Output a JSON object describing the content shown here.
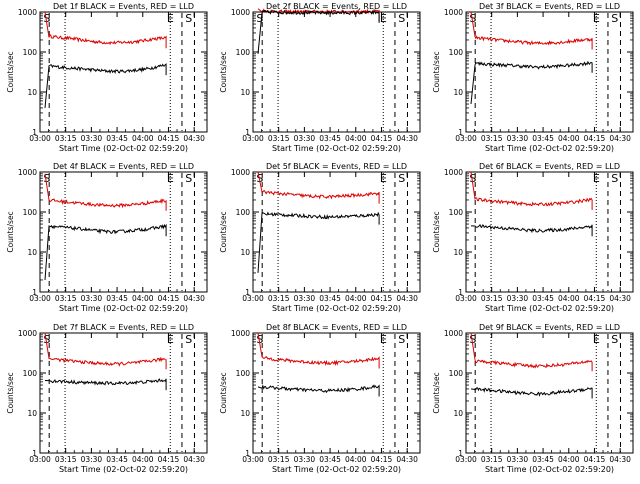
{
  "chart_data": [
    {
      "type": "line",
      "title": "Det 1f BLACK = Events, RED = LLD",
      "ylabel": "Counts/sec",
      "xlabel": "Start Time (02-Oct-02 02:59:20)",
      "x_ticks": [
        "03:00",
        "03:15",
        "03:30",
        "03:45",
        "04:00",
        "04:15",
        "04:30"
      ],
      "y_ticks": [
        "1",
        "10",
        "100",
        "1000"
      ],
      "ylim": [
        1,
        1000
      ],
      "yscale": "log",
      "markers": [
        "S",
        "E",
        "S"
      ],
      "series": [
        {
          "name": "LLD",
          "color": "#dd0000",
          "start_value": 1000,
          "values": [
            250,
            230,
            220,
            200,
            185,
            175,
            170,
            175,
            180,
            195,
            215,
            225
          ]
        },
        {
          "name": "Events",
          "color": "#000000",
          "start_value": 4,
          "values": [
            45,
            42,
            40,
            38,
            36,
            34,
            33,
            33,
            35,
            37,
            42,
            48
          ]
        }
      ]
    },
    {
      "type": "line",
      "title": "Det 2f BLACK = Events, RED = LLD",
      "ylabel": "Counts/sec",
      "xlabel": "Start Time (02-Oct-02 02:59:20)",
      "x_ticks": [
        "03:00",
        "03:15",
        "03:30",
        "03:45",
        "04:00",
        "04:15",
        "04:30"
      ],
      "y_ticks": [
        "1",
        "10",
        "100",
        "1000"
      ],
      "ylim": [
        1,
        1000
      ],
      "yscale": "log",
      "markers": [
        "S",
        "E",
        "S"
      ],
      "series": [
        {
          "name": "LLD",
          "color": "#dd0000",
          "start_value": 1200,
          "values": [
            1100,
            1050,
            1030,
            1020,
            1020,
            1020,
            1020,
            1020,
            1020,
            1030,
            1040,
            1050
          ]
        },
        {
          "name": "Events",
          "color": "#000000",
          "start_value": 90,
          "values": [
            1000,
            990,
            980,
            970,
            965,
            960,
            955,
            955,
            955,
            960,
            965,
            970
          ]
        }
      ]
    },
    {
      "type": "line",
      "title": "Det 3f BLACK = Events, RED = LLD",
      "ylabel": "Counts/sec",
      "xlabel": "Start Time (02-Oct-02 02:59:20)",
      "x_ticks": [
        "03:00",
        "03:15",
        "03:30",
        "03:45",
        "04:00",
        "04:15",
        "04:30"
      ],
      "y_ticks": [
        "1",
        "10",
        "100",
        "1000"
      ],
      "ylim": [
        1,
        1000
      ],
      "yscale": "log",
      "markers": [
        "S",
        "E",
        "S"
      ],
      "series": [
        {
          "name": "LLD",
          "color": "#dd0000",
          "start_value": 1000,
          "values": [
            230,
            215,
            200,
            190,
            180,
            170,
            165,
            170,
            175,
            185,
            200,
            210
          ]
        },
        {
          "name": "Events",
          "color": "#000000",
          "start_value": 5,
          "values": [
            52,
            50,
            48,
            47,
            45,
            43,
            42,
            43,
            45,
            47,
            50,
            55
          ]
        }
      ]
    },
    {
      "type": "line",
      "title": "Det 4f BLACK = Events, RED = LLD",
      "ylabel": "Counts/sec",
      "xlabel": "Start Time (02-Oct-02 02:59:20)",
      "x_ticks": [
        "03:00",
        "03:15",
        "03:30",
        "03:45",
        "04:00",
        "04:15",
        "04:30"
      ],
      "y_ticks": [
        "1",
        "10",
        "100",
        "1000"
      ],
      "ylim": [
        1,
        1000
      ],
      "yscale": "log",
      "markers": [
        "S",
        "E",
        "S"
      ],
      "series": [
        {
          "name": "LLD",
          "color": "#dd0000",
          "start_value": 900,
          "values": [
            200,
            185,
            175,
            165,
            155,
            148,
            145,
            148,
            155,
            165,
            180,
            195
          ]
        },
        {
          "name": "Events",
          "color": "#000000",
          "start_value": 2,
          "values": [
            45,
            42,
            40,
            38,
            35,
            33,
            32,
            33,
            35,
            37,
            40,
            45
          ]
        }
      ]
    },
    {
      "type": "line",
      "title": "Det 5f BLACK = Events, RED = LLD",
      "ylabel": "Counts/sec",
      "xlabel": "Start Time (02-Oct-02 02:59:20)",
      "x_ticks": [
        "03:00",
        "03:15",
        "03:30",
        "03:45",
        "04:00",
        "04:15",
        "04:30"
      ],
      "y_ticks": [
        "1",
        "10",
        "100",
        "1000"
      ],
      "ylim": [
        1,
        1000
      ],
      "yscale": "log",
      "markers": [
        "S",
        "E",
        "S"
      ],
      "series": [
        {
          "name": "LLD",
          "color": "#dd0000",
          "start_value": 1000,
          "values": [
            320,
            300,
            285,
            270,
            255,
            245,
            240,
            245,
            255,
            265,
            280,
            295
          ]
        },
        {
          "name": "Events",
          "color": "#000000",
          "start_value": 3,
          "values": [
            90,
            88,
            85,
            82,
            80,
            77,
            75,
            76,
            78,
            80,
            83,
            88
          ]
        }
      ]
    },
    {
      "type": "line",
      "title": "Det 6f BLACK = Events, RED = LLD",
      "ylabel": "Counts/sec",
      "xlabel": "Start Time (02-Oct-02 02:59:20)",
      "x_ticks": [
        "03:00",
        "03:15",
        "03:30",
        "03:45",
        "04:00",
        "04:15",
        "04:30"
      ],
      "y_ticks": [
        "1",
        "10",
        "100",
        "1000"
      ],
      "ylim": [
        1,
        1000
      ],
      "yscale": "log",
      "markers": [
        "S",
        "E",
        "S"
      ],
      "series": [
        {
          "name": "LLD",
          "color": "#dd0000",
          "start_value": 1000,
          "values": [
            210,
            195,
            185,
            175,
            165,
            158,
            155,
            158,
            165,
            175,
            190,
            205
          ]
        },
        {
          "name": "Events",
          "color": "#000000",
          "start_value": 45,
          "values": [
            45,
            43,
            41,
            39,
            37,
            35,
            34,
            35,
            36,
            38,
            41,
            45
          ]
        }
      ]
    },
    {
      "type": "line",
      "title": "Det 7f BLACK = Events, RED = LLD",
      "ylabel": "Counts/sec",
      "xlabel": "Start Time (02-Oct-02 02:59:20)",
      "x_ticks": [
        "03:00",
        "03:15",
        "03:30",
        "03:45",
        "04:00",
        "04:15",
        "04:30"
      ],
      "y_ticks": [
        "1",
        "10",
        "100",
        "1000"
      ],
      "ylim": [
        1,
        1000
      ],
      "yscale": "log",
      "markers": [
        "S",
        "E",
        "S"
      ],
      "series": [
        {
          "name": "LLD",
          "color": "#dd0000",
          "start_value": 1000,
          "values": [
            230,
            215,
            200,
            190,
            180,
            172,
            168,
            172,
            180,
            192,
            210,
            225
          ]
        },
        {
          "name": "Events",
          "color": "#000000",
          "start_value": 65,
          "values": [
            64,
            62,
            60,
            58,
            57,
            56,
            55,
            56,
            58,
            60,
            63,
            68
          ]
        }
      ]
    },
    {
      "type": "line",
      "title": "Det 8f BLACK = Events, RED = LLD",
      "ylabel": "Counts/sec",
      "xlabel": "Start Time (02-Oct-02 02:59:20)",
      "x_ticks": [
        "03:00",
        "03:15",
        "03:30",
        "03:45",
        "04:00",
        "04:15",
        "04:30"
      ],
      "y_ticks": [
        "1",
        "10",
        "100",
        "1000"
      ],
      "ylim": [
        1,
        1000
      ],
      "yscale": "log",
      "markers": [
        "S",
        "E",
        "S"
      ],
      "series": [
        {
          "name": "LLD",
          "color": "#dd0000",
          "start_value": 1000,
          "values": [
            240,
            225,
            210,
            200,
            190,
            182,
            178,
            182,
            190,
            200,
            215,
            235
          ]
        },
        {
          "name": "Events",
          "color": "#000000",
          "start_value": 45,
          "values": [
            45,
            43,
            41,
            39,
            38,
            37,
            36,
            37,
            38,
            40,
            43,
            47
          ]
        }
      ]
    },
    {
      "type": "line",
      "title": "Det 9f BLACK = Events, RED = LLD",
      "ylabel": "Counts/sec",
      "xlabel": "Start Time (02-Oct-02 02:59:20)",
      "x_ticks": [
        "03:00",
        "03:15",
        "03:30",
        "03:45",
        "04:00",
        "04:15",
        "04:30"
      ],
      "y_ticks": [
        "1",
        "10",
        "100",
        "1000"
      ],
      "ylim": [
        1,
        1000
      ],
      "yscale": "log",
      "markers": [
        "S",
        "E",
        "S"
      ],
      "series": [
        {
          "name": "LLD",
          "color": "#dd0000",
          "start_value": 1000,
          "values": [
            200,
            190,
            180,
            170,
            160,
            153,
            150,
            153,
            160,
            170,
            185,
            200
          ]
        },
        {
          "name": "Events",
          "color": "#000000",
          "start_value": 40,
          "values": [
            40,
            38,
            36,
            34,
            32,
            31,
            30,
            31,
            33,
            35,
            38,
            42
          ]
        }
      ]
    }
  ]
}
